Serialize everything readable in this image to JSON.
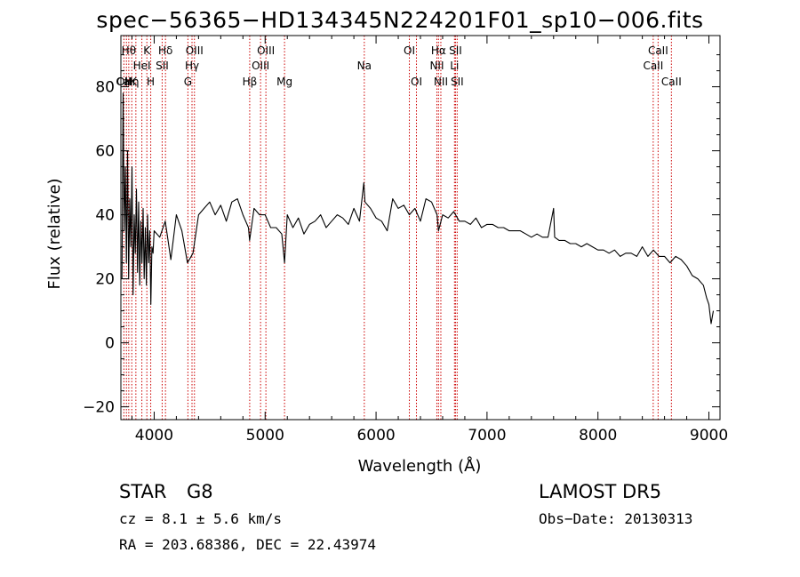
{
  "chart_data": {
    "type": "line",
    "title": "spec−56365−HD134345N224201F01_sp10−006.fits",
    "xlabel": "Wavelength (Å)",
    "ylabel": "Flux (relative)",
    "xlim": [
      3700,
      9100
    ],
    "ylim": [
      -24,
      96
    ],
    "xticks": [
      4000,
      5000,
      6000,
      7000,
      8000,
      9000
    ],
    "xtick_labels": [
      "4000",
      "5000",
      "6000",
      "7000",
      "8000",
      "9000"
    ],
    "yticks": [
      -20,
      0,
      20,
      40,
      60,
      80
    ],
    "ytick_labels": [
      "−20",
      "0",
      "20",
      "40",
      "60",
      "80"
    ],
    "line_color": "#000000",
    "marker_color": "#cc0000",
    "series": [
      {
        "x": [
          3710,
          3720,
          3730,
          3740,
          3750,
          3760,
          3770,
          3780,
          3790,
          3800,
          3810,
          3820,
          3830,
          3840,
          3850,
          3860,
          3870,
          3880,
          3890,
          3900,
          3910,
          3920,
          3930,
          3940,
          3950,
          3960,
          3970,
          3980,
          3990,
          4000,
          4050,
          4100,
          4150,
          4200,
          4250,
          4300,
          4350,
          4400,
          4450,
          4500,
          4550,
          4600,
          4650,
          4700,
          4750,
          4800,
          4850,
          4860,
          4900,
          4950,
          5000,
          5050,
          5100,
          5150,
          5175,
          5200,
          5250,
          5300,
          5350,
          5400,
          5450,
          5500,
          5550,
          5600,
          5650,
          5700,
          5750,
          5800,
          5850,
          5890,
          5900,
          5950,
          6000,
          6050,
          6100,
          6150,
          6200,
          6250,
          6300,
          6350,
          6400,
          6450,
          6500,
          6550,
          6563,
          6600,
          6650,
          6700,
          6750,
          6800,
          6850,
          6900,
          6950,
          7000,
          7050,
          7100,
          7150,
          7200,
          7250,
          7300,
          7350,
          7400,
          7450,
          7500,
          7550,
          7600,
          7610,
          7650,
          7700,
          7750,
          7800,
          7850,
          7900,
          7950,
          8000,
          8050,
          8100,
          8150,
          8200,
          8250,
          8300,
          8350,
          8400,
          8450,
          8500,
          8550,
          8600,
          8650,
          8700,
          8750,
          8800,
          8850,
          8900,
          8950,
          8980,
          9000,
          9020,
          9040
        ],
        "y": [
          20,
          78,
          35,
          55,
          25,
          60,
          20,
          45,
          30,
          55,
          15,
          40,
          28,
          48,
          22,
          44,
          18,
          38,
          25,
          42,
          20,
          36,
          18,
          40,
          25,
          35,
          12,
          30,
          28,
          35,
          33,
          38,
          26,
          40,
          35,
          25,
          28,
          40,
          42,
          44,
          40,
          43,
          38,
          44,
          45,
          40,
          36,
          32,
          42,
          40,
          40,
          36,
          36,
          34,
          25,
          40,
          36,
          39,
          34,
          37,
          38,
          40,
          36,
          38,
          40,
          39,
          37,
          42,
          38,
          50,
          44,
          42,
          39,
          38,
          35,
          45,
          42,
          43,
          40,
          42,
          38,
          45,
          44,
          40,
          35,
          40,
          39,
          41,
          38,
          38,
          37,
          39,
          36,
          37,
          37,
          36,
          36,
          35,
          35,
          35,
          34,
          33,
          34,
          33,
          33,
          42,
          33,
          32,
          32,
          31,
          31,
          30,
          31,
          30,
          29,
          29,
          28,
          29,
          27,
          28,
          28,
          27,
          30,
          27,
          29,
          27,
          27,
          25,
          27,
          26,
          24,
          21,
          20,
          18,
          14,
          12,
          6,
          10
        ],
        "name": ""
      }
    ],
    "line_markers": [
      {
        "x": 3727,
        "label": "OII",
        "row": 4
      },
      {
        "x": 3750,
        "label": "CaK",
        "row": 3
      },
      {
        "x": 3771,
        "label": "Hθ",
        "row": 1
      },
      {
        "x": 3798,
        "label": "Hη",
        "row": 3
      },
      {
        "x": 3835,
        "label": "",
        "row": 0
      },
      {
        "x": 3889,
        "label": "HeI",
        "row": 2
      },
      {
        "x": 3934,
        "label": "K",
        "row": 1
      },
      {
        "x": 3969,
        "label": "H",
        "row": 3
      },
      {
        "x": 4072,
        "label": "SII",
        "row": 2
      },
      {
        "x": 4102,
        "label": "Hδ",
        "row": 1
      },
      {
        "x": 4304,
        "label": "G",
        "row": 3
      },
      {
        "x": 4341,
        "label": "Hγ",
        "row": 2
      },
      {
        "x": 4363,
        "label": "OIII",
        "row": 1
      },
      {
        "x": 4861,
        "label": "Hβ",
        "row": 3
      },
      {
        "x": 4959,
        "label": "OIII",
        "row": 2
      },
      {
        "x": 5007,
        "label": "OIII",
        "row": 1
      },
      {
        "x": 5175,
        "label": "Mg",
        "row": 3
      },
      {
        "x": 5894,
        "label": "Na",
        "row": 2
      },
      {
        "x": 6300,
        "label": "OI",
        "row": 1
      },
      {
        "x": 6364,
        "label": "OI",
        "row": 3
      },
      {
        "x": 6548,
        "label": "NII",
        "row": 2
      },
      {
        "x": 6563,
        "label": "Hα",
        "row": 1
      },
      {
        "x": 6584,
        "label": "NII",
        "row": 3
      },
      {
        "x": 6707,
        "label": "Li",
        "row": 2
      },
      {
        "x": 6716,
        "label": "SII",
        "row": 1
      },
      {
        "x": 6731,
        "label": "SII",
        "row": 3
      },
      {
        "x": 8498,
        "label": "CaII",
        "row": 2
      },
      {
        "x": 8542,
        "label": "CaII",
        "row": 1
      },
      {
        "x": 8662,
        "label": "CaII",
        "row": 3
      }
    ],
    "grid": false,
    "legend": "none"
  },
  "info": {
    "object_class": "STAR",
    "subclass": "G8",
    "survey": "LAMOST DR5",
    "redshift": "cz = 8.1 ± 5.6 km/s",
    "obs_date": "Obs−Date: 20130313",
    "coords": "RA = 203.68386, DEC =  22.43974"
  }
}
